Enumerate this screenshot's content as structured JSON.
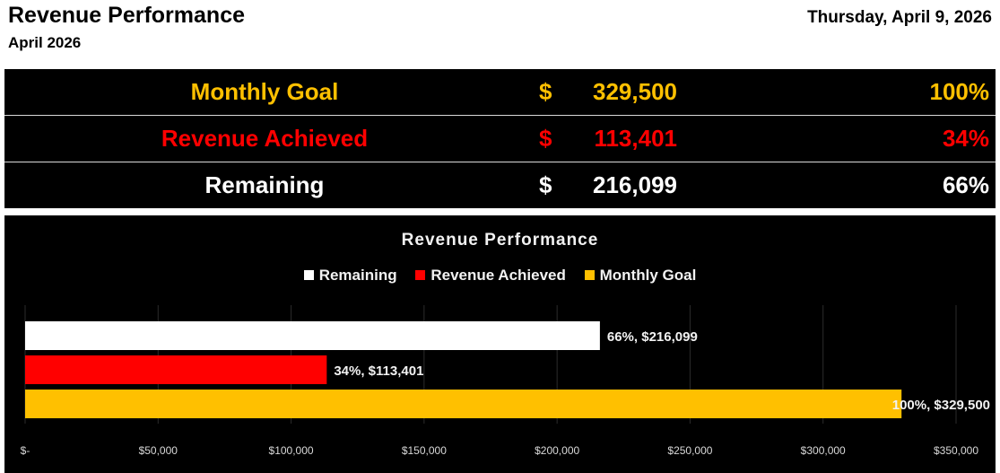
{
  "header": {
    "title": "Revenue Performance",
    "subtitle": "April 2026",
    "date": "Thursday, April 9, 2026"
  },
  "kpis": [
    {
      "label": "Monthly Goal",
      "currency": "$",
      "amount": "329,500",
      "percent": "100%",
      "color": "#FFC000"
    },
    {
      "label": "Revenue Achieved",
      "currency": "$",
      "amount": "113,401",
      "percent": "34%",
      "color": "#FF0000"
    },
    {
      "label": "Remaining",
      "currency": "$",
      "amount": "216,099",
      "percent": "66%",
      "color": "#FFFFFF"
    }
  ],
  "chart_data": {
    "type": "bar",
    "orientation": "horizontal",
    "title": "Revenue Performance",
    "legend": [
      "Remaining",
      "Revenue Achieved",
      "Monthly Goal"
    ],
    "legend_position": "top",
    "categories": [
      "Remaining",
      "Revenue Achieved",
      "Monthly Goal"
    ],
    "values": [
      216099,
      113401,
      329500
    ],
    "data_labels": [
      "66%, $216,099",
      "34%, $113,401",
      "100%, $329,500"
    ],
    "colors": [
      "#FFFFFF",
      "#FF0000",
      "#FFC000"
    ],
    "xlim": [
      0,
      350000
    ],
    "x_ticks": [
      0,
      50000,
      100000,
      150000,
      200000,
      250000,
      300000,
      350000
    ],
    "x_tick_labels": [
      "$-",
      "$50,000",
      "$100,000",
      "$150,000",
      "$200,000",
      "$250,000",
      "$300,000",
      "$350,000"
    ],
    "grid": true
  }
}
